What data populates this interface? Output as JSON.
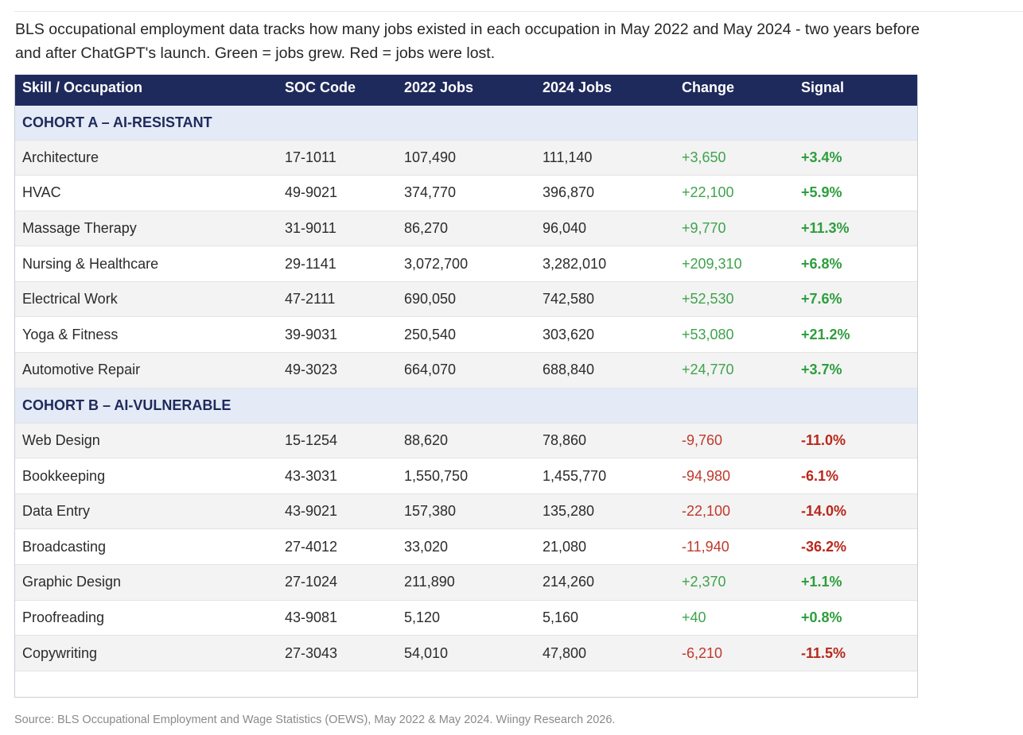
{
  "intro": {
    "line1": "BLS occupational employment data tracks how many jobs existed in each occupation in May 2022 and May 2024 - two years before",
    "line2": "and after ChatGPT's launch. Green = jobs grew. Red = jobs were lost."
  },
  "table": {
    "headers": [
      "Skill / Occupation",
      "SOC Code",
      "2022 Jobs",
      "2024 Jobs",
      "Change",
      "Signal"
    ],
    "cohort_a": {
      "label": "COHORT A – AI-RESISTANT",
      "rows": [
        {
          "skill": "Architecture",
          "soc": "17-1011",
          "jobs2022": "107,490",
          "jobs2024": "111,140",
          "change": "+3,650",
          "signal": "+3.4%",
          "trend": "pos"
        },
        {
          "skill": "HVAC",
          "soc": "49-9021",
          "jobs2022": "374,770",
          "jobs2024": "396,870",
          "change": "+22,100",
          "signal": "+5.9%",
          "trend": "pos"
        },
        {
          "skill": "Massage Therapy",
          "soc": "31-9011",
          "jobs2022": "86,270",
          "jobs2024": "96,040",
          "change": "+9,770",
          "signal": "+11.3%",
          "trend": "pos"
        },
        {
          "skill": "Nursing & Healthcare",
          "soc": "29-1141",
          "jobs2022": "3,072,700",
          "jobs2024": "3,282,010",
          "change": "+209,310",
          "signal": "+6.8%",
          "trend": "pos"
        },
        {
          "skill": "Electrical Work",
          "soc": "47-2111",
          "jobs2022": "690,050",
          "jobs2024": "742,580",
          "change": "+52,530",
          "signal": "+7.6%",
          "trend": "pos"
        },
        {
          "skill": "Yoga & Fitness",
          "soc": "39-9031",
          "jobs2022": "250,540",
          "jobs2024": "303,620",
          "change": "+53,080",
          "signal": "+21.2%",
          "trend": "pos"
        },
        {
          "skill": "Automotive Repair",
          "soc": "49-3023",
          "jobs2022": "664,070",
          "jobs2024": "688,840",
          "change": "+24,770",
          "signal": "+3.7%",
          "trend": "pos"
        }
      ]
    },
    "cohort_b": {
      "label": "COHORT B – AI-VULNERABLE",
      "rows": [
        {
          "skill": "Web Design",
          "soc": "15-1254",
          "jobs2022": "88,620",
          "jobs2024": "78,860",
          "change": "-9,760",
          "signal": "-11.0%",
          "trend": "neg"
        },
        {
          "skill": "Bookkeeping",
          "soc": "43-3031",
          "jobs2022": "1,550,750",
          "jobs2024": "1,455,770",
          "change": "-94,980",
          "signal": "-6.1%",
          "trend": "neg"
        },
        {
          "skill": "Data Entry",
          "soc": "43-9021",
          "jobs2022": "157,380",
          "jobs2024": "135,280",
          "change": "-22,100",
          "signal": "-14.0%",
          "trend": "neg"
        },
        {
          "skill": "Broadcasting",
          "soc": "27-4012",
          "jobs2022": "33,020",
          "jobs2024": "21,080",
          "change": "-11,940",
          "signal": "-36.2%",
          "trend": "neg"
        },
        {
          "skill": "Graphic Design",
          "soc": "27-1024",
          "jobs2022": "211,890",
          "jobs2024": "214,260",
          "change": "+2,370",
          "signal": "+1.1%",
          "trend": "pos"
        },
        {
          "skill": "Proofreading",
          "soc": "43-9081",
          "jobs2022": "5,120",
          "jobs2024": "5,160",
          "change": "+40",
          "signal": "+0.8%",
          "trend": "pos"
        },
        {
          "skill": "Copywriting",
          "soc": "27-3043",
          "jobs2022": "54,010",
          "jobs2024": "47,800",
          "change": "-6,210",
          "signal": "-11.5%",
          "trend": "neg"
        }
      ]
    }
  },
  "source": "Source: BLS Occupational Employment and Wage Statistics (OEWS), May 2022 & May 2024. Wiingy Research 2026.",
  "colors": {
    "header_bg": "#1f2a5c",
    "cohort_bg": "#e4ebf6",
    "positive": "#3fa34d",
    "negative": "#c0392b"
  }
}
